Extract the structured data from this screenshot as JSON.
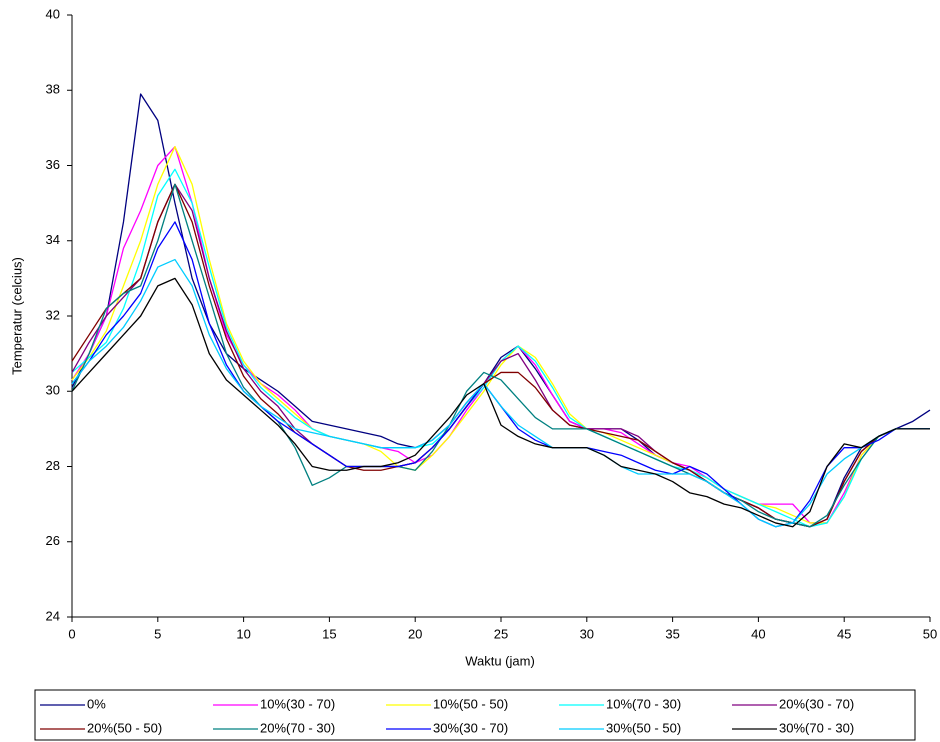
{
  "chart_data": {
    "type": "line",
    "x_label": "Waktu (jam)",
    "y_label": "Temperatur (celcius)",
    "x": [
      0,
      1,
      2,
      3,
      4,
      5,
      6,
      7,
      8,
      9,
      10,
      11,
      12,
      13,
      14,
      15,
      16,
      17,
      18,
      19,
      20,
      21,
      22,
      23,
      24,
      25,
      26,
      27,
      28,
      29,
      30,
      31,
      32,
      33,
      34,
      35,
      36,
      37,
      38,
      39,
      40,
      41,
      42,
      43,
      44,
      45,
      46,
      47,
      48,
      49,
      50
    ],
    "xlim": [
      0,
      50
    ],
    "xticks": [
      0,
      5,
      10,
      15,
      20,
      25,
      30,
      35,
      40,
      45,
      50
    ],
    "ylim": [
      24,
      40
    ],
    "yticks": [
      24,
      26,
      28,
      30,
      32,
      34,
      36,
      38,
      40
    ],
    "grid": false,
    "legend": "bottom",
    "series": [
      {
        "name": "0%",
        "color": "#000080",
        "values": [
          30.1,
          31,
          32,
          34.5,
          37.9,
          37.2,
          35,
          33,
          31.8,
          31,
          30.6,
          30.3,
          30,
          29.6,
          29.2,
          29.1,
          29,
          28.9,
          28.8,
          28.6,
          28.5,
          28.7,
          29.1,
          29.7,
          30.2,
          30.9,
          31.2,
          30.6,
          29.9,
          29.2,
          29,
          29,
          29,
          28.7,
          28.3,
          28.1,
          27.9,
          27.6,
          27.3,
          27.1,
          26.9,
          26.6,
          26.5,
          26.4,
          26.6,
          27.7,
          28.5,
          28.8,
          29,
          29.2,
          29.5
        ]
      },
      {
        "name": "10%(30 - 70)",
        "color": "#ff00ff",
        "values": [
          30.3,
          31,
          32,
          33.8,
          34.8,
          36,
          36.5,
          35,
          33,
          31.5,
          30.7,
          30.2,
          29.9,
          29.5,
          29,
          28.8,
          28.7,
          28.6,
          28.5,
          28.4,
          28.1,
          28.3,
          28.8,
          29.5,
          30.1,
          30.8,
          31.2,
          30.7,
          29.9,
          29.2,
          29,
          29,
          28.9,
          28.6,
          28.3,
          28.1,
          28,
          27.7,
          27.4,
          27.2,
          27,
          27,
          27,
          26.5,
          26.5,
          27.3,
          28.3,
          28.8,
          29,
          29,
          29
        ]
      },
      {
        "name": "10%(50 - 50)",
        "color": "#ffff00",
        "values": [
          30.3,
          30.9,
          31.6,
          32.8,
          34,
          35.5,
          36.5,
          35.5,
          33.5,
          31.8,
          30.8,
          30.2,
          29.8,
          29.4,
          29,
          28.8,
          28.7,
          28.6,
          28.4,
          28,
          27.9,
          28.3,
          28.8,
          29.4,
          30,
          30.7,
          31.2,
          30.9,
          30.2,
          29.4,
          29,
          28.9,
          28.7,
          28.5,
          28.3,
          28.1,
          27.9,
          27.7,
          27.4,
          27.2,
          27,
          26.9,
          26.7,
          26.5,
          26.5,
          27.2,
          28.3,
          28.8,
          29,
          29,
          29
        ]
      },
      {
        "name": "10%(70 - 30)",
        "color": "#00ffff",
        "values": [
          30.5,
          30.9,
          31.3,
          32.2,
          33.5,
          35.2,
          35.9,
          35,
          33.3,
          31.7,
          30.7,
          30.1,
          29.7,
          29.3,
          29,
          28.8,
          28.7,
          28.6,
          28.5,
          28.5,
          28.5,
          28.6,
          29,
          29.6,
          30.1,
          30.8,
          31.2,
          30.8,
          30.1,
          29.3,
          29,
          28.8,
          28.6,
          28.4,
          28.2,
          28,
          27.9,
          27.7,
          27.4,
          27.2,
          27,
          26.8,
          26.6,
          26.4,
          26.5,
          27.2,
          28.2,
          28.8,
          29,
          29,
          29
        ]
      },
      {
        "name": "20%(30 - 70)",
        "color": "#800080",
        "values": [
          30.5,
          31.3,
          32,
          32.5,
          33,
          34.5,
          35.5,
          34.8,
          33,
          31.6,
          30.6,
          30,
          29.6,
          29,
          28.6,
          28.3,
          28,
          28,
          28,
          28,
          28.1,
          28.5,
          29,
          29.6,
          30.2,
          30.8,
          31,
          30.3,
          29.5,
          29.1,
          29,
          29,
          29,
          28.8,
          28.4,
          28.1,
          27.9,
          27.6,
          27.3,
          27.1,
          26.9,
          26.6,
          26.5,
          26.4,
          26.6,
          27.6,
          28.4,
          28.8,
          29,
          29,
          29
        ]
      },
      {
        "name": "20%(50 - 50)",
        "color": "#800000",
        "values": [
          30.8,
          31.5,
          32.2,
          32.6,
          33,
          34.5,
          35.5,
          34.5,
          32.8,
          31.4,
          30.4,
          29.8,
          29.4,
          28.9,
          28.6,
          28.3,
          28,
          27.9,
          27.9,
          28,
          28.1,
          28.5,
          29,
          29.6,
          30.2,
          30.5,
          30.5,
          30.1,
          29.5,
          29.1,
          29,
          28.9,
          28.8,
          28.7,
          28.4,
          28.1,
          27.9,
          27.6,
          27.3,
          27.1,
          26.9,
          26.6,
          26.5,
          26.4,
          26.6,
          27.6,
          28.4,
          28.8,
          29,
          29,
          29
        ]
      },
      {
        "name": "20%(70 - 30)",
        "color": "#008080",
        "values": [
          30,
          31,
          32.2,
          32.6,
          32.8,
          34,
          35.5,
          34,
          32.5,
          31,
          30.1,
          29.6,
          29.2,
          28.5,
          27.5,
          27.7,
          28,
          28,
          28,
          28,
          27.9,
          28.4,
          29.1,
          30,
          30.5,
          30.3,
          29.8,
          29.3,
          29,
          29,
          29,
          28.8,
          28.6,
          28.4,
          28.2,
          28,
          27.8,
          27.6,
          27.3,
          27.1,
          26.8,
          26.6,
          26.5,
          26.4,
          26.7,
          27.5,
          28.2,
          28.8,
          29,
          29,
          29
        ]
      },
      {
        "name": "30%(30 - 70)",
        "color": "#0000ff",
        "values": [
          30.2,
          30.8,
          31.5,
          32,
          32.6,
          33.8,
          34.5,
          33.5,
          31.8,
          30.7,
          30,
          29.6,
          29.2,
          28.9,
          28.6,
          28.3,
          28,
          28,
          28,
          28,
          28.1,
          28.5,
          29,
          29.6,
          30.2,
          29.6,
          29,
          28.7,
          28.5,
          28.5,
          28.5,
          28.4,
          28.3,
          28.1,
          27.9,
          27.8,
          28,
          27.8,
          27.4,
          27,
          26.6,
          26.4,
          26.5,
          27.1,
          28,
          28.5,
          28.5,
          28.7,
          29,
          29,
          29
        ]
      },
      {
        "name": "30%(50 - 50)",
        "color": "#00ccff",
        "values": [
          30.2,
          30.8,
          31.2,
          31.7,
          32.4,
          33.3,
          33.5,
          32.8,
          31.5,
          30.6,
          30,
          29.6,
          29.3,
          29,
          28.9,
          28.8,
          28.7,
          28.6,
          28.5,
          28.5,
          28.5,
          28.7,
          29.1,
          29.7,
          30.2,
          29.6,
          29.1,
          28.8,
          28.5,
          28.5,
          28.5,
          28.3,
          28,
          27.8,
          27.8,
          27.8,
          27.8,
          27.6,
          27.3,
          27,
          26.6,
          26.4,
          26.5,
          27,
          27.8,
          28.2,
          28.5,
          28.8,
          29,
          29,
          29
        ]
      },
      {
        "name": "30%(70 - 30)",
        "color": "#000000",
        "values": [
          30,
          30.5,
          31,
          31.5,
          32,
          32.8,
          33,
          32.3,
          31,
          30.3,
          29.9,
          29.5,
          29.1,
          28.6,
          28,
          27.9,
          27.9,
          28,
          28,
          28.1,
          28.3,
          28.8,
          29.3,
          29.9,
          30.2,
          29.1,
          28.8,
          28.6,
          28.5,
          28.5,
          28.5,
          28.3,
          28,
          27.9,
          27.8,
          27.6,
          27.3,
          27.2,
          27,
          26.9,
          26.7,
          26.5,
          26.4,
          26.8,
          28,
          28.6,
          28.5,
          28.8,
          29,
          29,
          29
        ]
      }
    ]
  }
}
